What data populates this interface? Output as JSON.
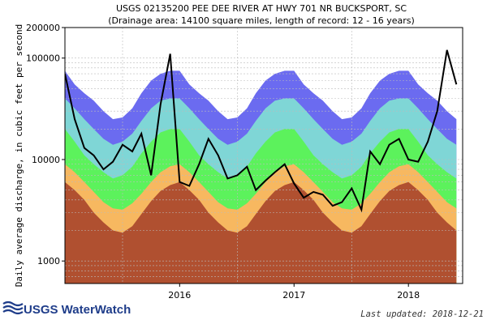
{
  "chart_data": {
    "type": "area",
    "title": "USGS 02135200 PEE DEE RIVER AT HWY 701 NR BUCKSPORT, SC",
    "subtitle": "(Drainage area: 14100 square miles, length of record: 12 - 16 years)",
    "ylabel": "Daily average discharge, in cubic feet per second",
    "xlabel": "",
    "yscale": "log",
    "ylim": [
      600,
      200000
    ],
    "xlim": [
      "2015-07-01",
      "2018-12-21"
    ],
    "x_ticks": [
      {
        "label": "2016",
        "date": "2016-07-01"
      },
      {
        "label": "2017",
        "date": "2017-07-01"
      },
      {
        "label": "2018",
        "date": "2018-07-01"
      }
    ],
    "y_ticks": [
      {
        "label": "1000",
        "value": 1000
      },
      {
        "label": "10000",
        "value": 10000
      },
      {
        "label": "100000",
        "value": 100000
      },
      {
        "label": "200000",
        "value": 200000
      }
    ],
    "grid": true,
    "legend": "none",
    "band_colors": {
      "max": "#6b6bf0",
      "p75_90": "#7fd6d6",
      "p25_75": "#5cf25c",
      "p10_25": "#f7b860",
      "min": "#b05030",
      "observed": "#000000"
    },
    "x": [
      "2015-07-01",
      "2015-08-01",
      "2015-09-01",
      "2015-10-01",
      "2015-11-01",
      "2015-12-01",
      "2016-01-01",
      "2016-02-01",
      "2016-03-01",
      "2016-04-01",
      "2016-05-01",
      "2016-06-01",
      "2016-07-01",
      "2016-08-01",
      "2016-09-01",
      "2016-10-01",
      "2016-11-01",
      "2016-12-01",
      "2017-01-01",
      "2017-02-01",
      "2017-03-01",
      "2017-04-01",
      "2017-05-01",
      "2017-06-01",
      "2017-07-01",
      "2017-08-01",
      "2017-09-01",
      "2017-10-01",
      "2017-11-01",
      "2017-12-01",
      "2018-01-01",
      "2018-02-01",
      "2018-03-01",
      "2018-04-01",
      "2018-05-01",
      "2018-06-01",
      "2018-07-01",
      "2018-08-01",
      "2018-09-01",
      "2018-10-01",
      "2018-11-01",
      "2018-12-01"
    ],
    "series": [
      {
        "values": [
          75000,
          55000,
          45000,
          38000,
          30000,
          25000,
          26000,
          32000,
          45000,
          60000,
          70000,
          75000,
          75000,
          55000,
          45000,
          38000,
          30000,
          25000,
          26000,
          32000,
          45000,
          60000,
          70000,
          75000,
          75000,
          55000,
          45000,
          38000,
          30000,
          25000,
          26000,
          32000,
          45000,
          60000,
          70000,
          75000,
          75000,
          55000,
          45000,
          38000,
          30000,
          25000
        ]
      },
      {
        "values": [
          40000,
          32000,
          25000,
          20000,
          16000,
          14000,
          15000,
          18000,
          24000,
          32000,
          38000,
          40000,
          40000,
          32000,
          25000,
          20000,
          16000,
          14000,
          15000,
          18000,
          24000,
          32000,
          38000,
          40000,
          40000,
          32000,
          25000,
          20000,
          16000,
          14000,
          15000,
          18000,
          24000,
          32000,
          38000,
          40000,
          40000,
          32000,
          25000,
          20000,
          16000,
          14000
        ]
      },
      {
        "values": [
          20000,
          15000,
          11000,
          9000,
          7500,
          6500,
          7000,
          8500,
          11500,
          15000,
          18500,
          20000,
          20000,
          15000,
          11000,
          9000,
          7500,
          6500,
          7000,
          8500,
          11500,
          15000,
          18500,
          20000,
          20000,
          15000,
          11000,
          9000,
          7500,
          6500,
          7000,
          8500,
          11500,
          15000,
          18500,
          20000,
          20000,
          15000,
          11000,
          9000,
          7500,
          6500
        ]
      },
      {
        "values": [
          9000,
          7500,
          6000,
          4800,
          3800,
          3300,
          3200,
          3700,
          4600,
          6000,
          7500,
          8600,
          9000,
          7500,
          6000,
          4800,
          3800,
          3300,
          3200,
          3700,
          4600,
          6000,
          7500,
          8600,
          9000,
          7500,
          6000,
          4800,
          3800,
          3300,
          3200,
          3700,
          4600,
          6000,
          7500,
          8600,
          9000,
          7500,
          6000,
          4800,
          3800,
          3300
        ]
      },
      {
        "values": [
          6000,
          5000,
          4000,
          3000,
          2400,
          2000,
          1900,
          2200,
          2900,
          3900,
          4900,
          5600,
          6000,
          5000,
          4000,
          3000,
          2400,
          2000,
          1900,
          2200,
          2900,
          3900,
          4900,
          5600,
          6000,
          5000,
          4000,
          3000,
          2400,
          2000,
          1900,
          2200,
          2900,
          3900,
          4900,
          5600,
          6000,
          5000,
          4000,
          3000,
          2400,
          2000
        ]
      },
      {
        "values": [
          70000,
          25000,
          13000,
          11000,
          8000,
          9500,
          14000,
          12000,
          18000,
          7000,
          35000,
          110000,
          6000,
          5500,
          9000,
          16000,
          11000,
          6500,
          7000,
          8500,
          5000,
          6200,
          7500,
          9000,
          5800,
          4200,
          4800,
          4500,
          3500,
          3800,
          5200,
          3200,
          12000,
          9000,
          14000,
          16000,
          10000,
          9500,
          15000,
          30000,
          120000,
          55000
        ]
      }
    ]
  },
  "footer": {
    "logo_text": "USGS WaterWatch",
    "last_updated": "Last updated: 2018-12-21"
  }
}
